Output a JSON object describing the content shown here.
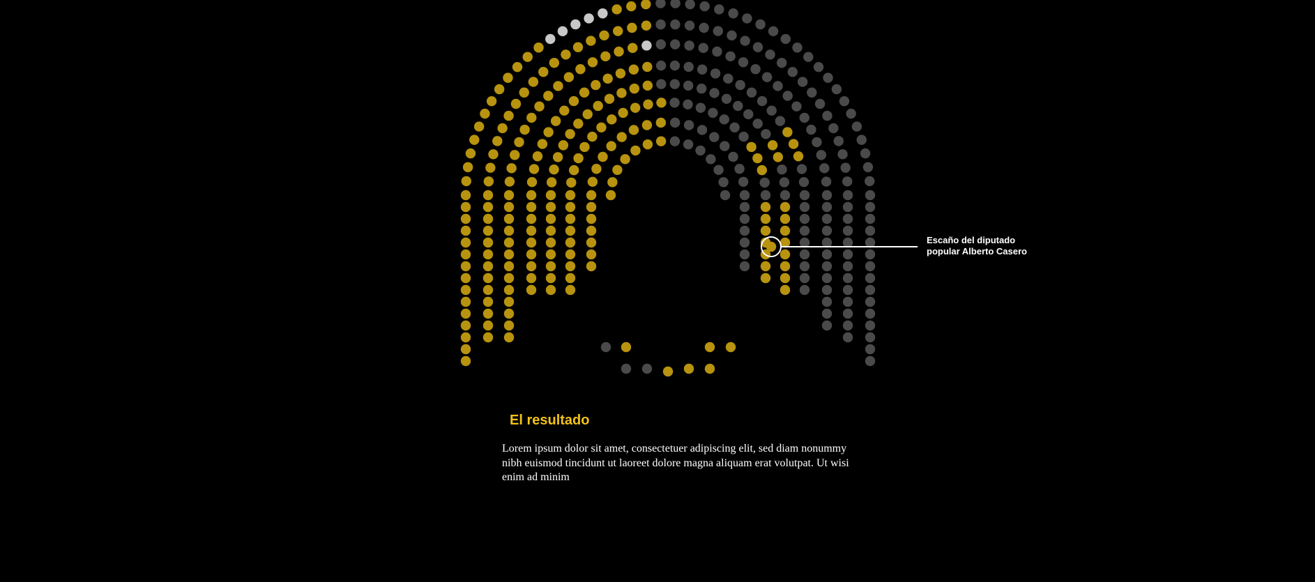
{
  "colors": {
    "gold": "#b8930f",
    "grey": "#4a4a4a",
    "light": "#c8c8c8",
    "background": "#000000",
    "title": "#f2c21a",
    "callout": "#ffffff"
  },
  "callout": {
    "label_line1": "Escaño del diputado",
    "label_line2": "popular Alberto Casero"
  },
  "section": {
    "title": "El resultado",
    "body": "Lorem ipsum dolor sit amet, consectetuer adipiscing elit, sed diam nonummy nibh euismod tincidunt ut laoreet dolore magna aliquam erat volutpat. Ut wisi enim ad minim"
  },
  "seating": {
    "outer_arch": [
      [
        "g",
        "g",
        "g",
        "g",
        "g",
        "g",
        "g",
        "g",
        "g",
        "g",
        "g",
        "g",
        "g",
        "g",
        "g",
        "g",
        "g",
        "g",
        "g",
        "g",
        "g",
        "g",
        "g",
        "g",
        "g",
        "g",
        "g",
        "g",
        "g",
        "g",
        "g",
        "g",
        "g",
        "g",
        "g",
        "g",
        "g",
        "g",
        "g",
        "g",
        "g",
        "g",
        "g",
        "g",
        "g",
        "g",
        "g",
        "g",
        "g",
        "g",
        "g",
        "g",
        "g",
        "g",
        "g",
        "g",
        "g",
        "g",
        "g",
        "g",
        "g",
        "g",
        "g",
        "g",
        "g",
        "g",
        "g",
        "g",
        "g",
        "g",
        "g",
        "g",
        "g",
        "g",
        "g",
        "g",
        "g",
        "g",
        "g",
        "g",
        "g",
        "g",
        "g",
        "g",
        "g",
        "g",
        "g",
        "g",
        "g",
        "g",
        "g",
        "g",
        "g",
        "g",
        "g",
        "g"
      ]
    ]
  }
}
